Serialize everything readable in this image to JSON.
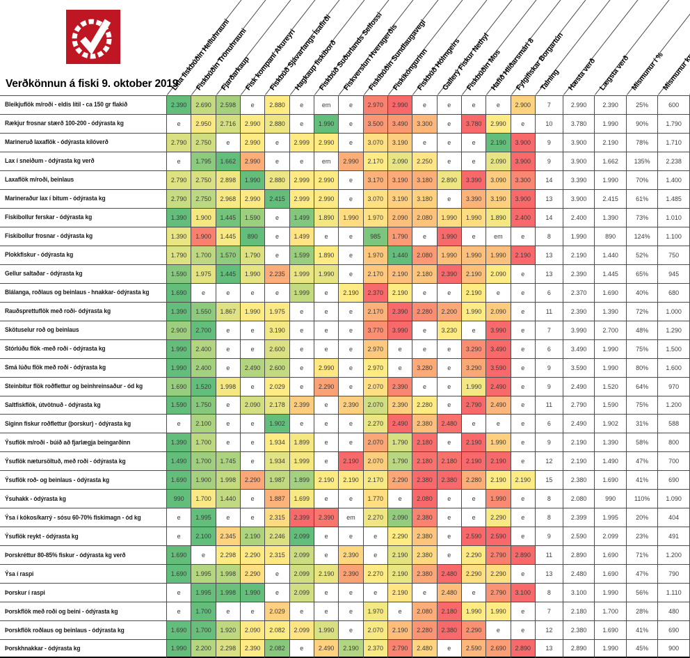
{
  "title": "Verðkönnun á fiski 9. oktober 2019",
  "logo": {
    "name": "chain-circle-checkmark-logo",
    "bg_color": "#be1622",
    "fg_color": "#ffffff"
  },
  "legend_colors": {
    "min_green": "#63BE7B",
    "mid_yellow": "#FFEB84",
    "max_red": "#F8696B",
    "empty": "#FFFFFF"
  },
  "chart_data": {
    "type": "table",
    "title": "Verðkönnun á fiski 9. október 2019",
    "color_scale": "per-row 3-color scale: min=green #63BE7B, median=yellow #FFEB84, max=red #F8696B, 'e'/'em'=white",
    "store_columns": [
      "Litla fiskbúðin Helluhrauni",
      "Fiskbúðin Trönuhrauni",
      "Fjarðarkaup",
      "Fisk kompaní Akureyri",
      "Fiskbúð Sjávarfangs Ísafirði",
      "Hagkaup fiskiborð",
      "Fiskbúð Suðurlands Selfossi",
      "Fiskverslun Hveragerðis",
      "Fiskibúðin Sundlaugavegi",
      "Fiskikóngurinn",
      "Fiskbúð Hólmgeirs",
      "Gallerý Fiskur Nethyl",
      "Fiskbúðin Mos",
      "Hafið Hlíðarsmári 8",
      "Fylgifiskar Borgartún"
    ],
    "summary_columns": [
      "Talning",
      "Hæsta verð",
      "Lægsta verð",
      "Mismunur í %",
      "Mismunur kr"
    ],
    "rows": [
      {
        "label": "Bleikjuflök m/roði - eldis lítil - ca 150 gr flakið",
        "prices": [
          "2.390",
          "2.690",
          "2.598",
          "e",
          "2.880",
          "e",
          "em",
          "e",
          "2.970",
          "2.990",
          "e",
          "e",
          "e",
          "e",
          "2.900"
        ],
        "summary": [
          "7",
          "2.990",
          "2.390",
          "25%",
          "600"
        ]
      },
      {
        "label": "Rækjur frosnar stærð 100-200 - ódýrasta kg",
        "prices": [
          "e",
          "2.950",
          "2.716",
          "2.990",
          "2.880",
          "e",
          "1.990",
          "e",
          "3.500",
          "3.490",
          "3.300",
          "e",
          "3.780",
          "2.990",
          "e"
        ],
        "summary": [
          "10",
          "3.780",
          "1.990",
          "90%",
          "1.790"
        ]
      },
      {
        "label": "Marineruð laxaflök - ódýrasta kílóverð",
        "prices": [
          "2.790",
          "2.750",
          "e",
          "2.990",
          "e",
          "2.999",
          "2.990",
          "e",
          "3.070",
          "3.190",
          "e",
          "e",
          "e",
          "2.190",
          "3.900"
        ],
        "summary": [
          "9",
          "3.900",
          "2.190",
          "78%",
          "1.710"
        ]
      },
      {
        "label": "Lax í sneiðum - ódýrasta kg verð",
        "prices": [
          "e",
          "1.795",
          "1.662",
          "2.990",
          "e",
          "e",
          "em",
          "2.990",
          "2.170",
          "2.090",
          "2.250",
          "e",
          "e",
          "2.090",
          "3.900"
        ],
        "summary": [
          "9",
          "3.900",
          "1.662",
          "135%",
          "2.238"
        ]
      },
      {
        "label": "Laxaflök m/roði, beinlaus",
        "prices": [
          "2.790",
          "2.750",
          "2.898",
          "1.990",
          "2.880",
          "2.999",
          "2.990",
          "e",
          "3.170",
          "3.190",
          "3.180",
          "2.890",
          "3.390",
          "3.090",
          "3.300"
        ],
        "summary": [
          "14",
          "3.390",
          "1.990",
          "70%",
          "1.400"
        ]
      },
      {
        "label": "Marineraður lax í bitum - ódýrasta kg",
        "prices": [
          "2.790",
          "2.750",
          "2.968",
          "2.990",
          "2.415",
          "2.999",
          "2.990",
          "e",
          "3.070",
          "3.190",
          "3.180",
          "e",
          "3.390",
          "3.190",
          "3.900"
        ],
        "summary": [
          "13",
          "3.900",
          "2.415",
          "61%",
          "1.485"
        ]
      },
      {
        "label": "Fiskibollur ferskar - ódýrasta kg",
        "prices": [
          "1.390",
          "1.900",
          "1.445",
          "1.590",
          "e",
          "1.499",
          "1.890",
          "1.990",
          "1.970",
          "2.090",
          "2.080",
          "1.990",
          "1.990",
          "1.890",
          "2.400"
        ],
        "summary": [
          "14",
          "2.400",
          "1.390",
          "73%",
          "1.010"
        ]
      },
      {
        "label": "Fiskibollur frosnar - ódýrasta kg",
        "prices": [
          "1.390",
          "1.900",
          "1.445",
          "890",
          "e",
          "1.499",
          "e",
          "e",
          "985",
          "1.790",
          "e",
          "1.990",
          "e",
          "em",
          "e"
        ],
        "summary": [
          "8",
          "1.990",
          "890",
          "124%",
          "1.100"
        ]
      },
      {
        "label": "Plokkfiskur - ódýrasta kg",
        "prices": [
          "1.790",
          "1.700",
          "1.570",
          "1.790",
          "e",
          "1.599",
          "1.890",
          "e",
          "1.970",
          "1.440",
          "2.080",
          "1.990",
          "1.990",
          "1.990",
          "2.190"
        ],
        "summary": [
          "13",
          "2.190",
          "1.440",
          "52%",
          "750"
        ]
      },
      {
        "label": "Gellur saltaðar - ódýrasta kg",
        "prices": [
          "1.590",
          "1.975",
          "1.445",
          "1.990",
          "2.235",
          "1.999",
          "1.990",
          "e",
          "2.170",
          "2.190",
          "2.180",
          "2.390",
          "2.190",
          "2.090",
          "e"
        ],
        "summary": [
          "13",
          "2.390",
          "1.445",
          "65%",
          "945"
        ]
      },
      {
        "label": "Blálanga, roðlaus og beinlaus - hnakkar- ódýrasta kg",
        "prices": [
          "1.690",
          "e",
          "e",
          "e",
          "e",
          "1.999",
          "e",
          "2.190",
          "2.370",
          "2.190",
          "e",
          "e",
          "2.190",
          "e",
          "e"
        ],
        "summary": [
          "6",
          "2.370",
          "1.690",
          "40%",
          "680"
        ]
      },
      {
        "label": "Rauðsprettuflök með roði- ódýrasta kg",
        "prices": [
          "1.390",
          "1.550",
          "1.867",
          "1.990",
          "1.975",
          "e",
          "e",
          "e",
          "2.170",
          "2.390",
          "2.280",
          "2.200",
          "1.990",
          "2.090",
          "e"
        ],
        "summary": [
          "11",
          "2.390",
          "1.390",
          "72%",
          "1.000"
        ]
      },
      {
        "label": "Skötuselur roð og beinlaus",
        "prices": [
          "2.900",
          "2.700",
          "e",
          "e",
          "3.190",
          "e",
          "e",
          "e",
          "3.770",
          "3.990",
          "e",
          "3.230",
          "e",
          "3.990",
          "e"
        ],
        "summary": [
          "7",
          "3.990",
          "2.700",
          "48%",
          "1.290"
        ]
      },
      {
        "label": "Stórlúðu flök -með roði - ódýrasta kg",
        "prices": [
          "1.990",
          "2.400",
          "e",
          "e",
          "2.600",
          "e",
          "e",
          "e",
          "2.970",
          "e",
          "e",
          "e",
          "3.290",
          "3.490",
          "e"
        ],
        "summary": [
          "6",
          "3.490",
          "1.990",
          "75%",
          "1.500"
        ]
      },
      {
        "label": "Smá lúðu flök með roði - ódýrasta kg",
        "prices": [
          "1.990",
          "2.400",
          "e",
          "2.490",
          "2.600",
          "e",
          "2.990",
          "e",
          "2.970",
          "e",
          "3.280",
          "e",
          "3.290",
          "3.590",
          "e"
        ],
        "summary": [
          "9",
          "3.590",
          "1.990",
          "80%",
          "1.600"
        ]
      },
      {
        "label": "Steinbítur flök roðflettur og beinhreinsaður - ód kg",
        "prices": [
          "1.690",
          "1.520",
          "1.998",
          "e",
          "2.029",
          "e",
          "2.290",
          "e",
          "2.070",
          "2.390",
          "e",
          "e",
          "1.990",
          "2.490",
          "e"
        ],
        "summary": [
          "9",
          "2.490",
          "1.520",
          "64%",
          "970"
        ]
      },
      {
        "label": "Saltfiskflök, útvötnuð - ódýrasta kg",
        "prices": [
          "1.590",
          "1.750",
          "e",
          "2.090",
          "2.178",
          "2.399",
          "e",
          "2.390",
          "2.070",
          "2.390",
          "2.280",
          "e",
          "2.790",
          "2.490",
          "e"
        ],
        "summary": [
          "11",
          "2.790",
          "1.590",
          "75%",
          "1.200"
        ]
      },
      {
        "label": "Siginn fiskur roðflettur (þorskur) - ódýrasta kg",
        "prices": [
          "e",
          "2.100",
          "e",
          "e",
          "1.902",
          "e",
          "e",
          "e",
          "2.270",
          "2.490",
          "2.380",
          "2.480",
          "e",
          "e",
          "e"
        ],
        "summary": [
          "6",
          "2.490",
          "1.902",
          "31%",
          "588"
        ]
      },
      {
        "label": "Ýsuflök m/roði - búið að fjarlægja beingarðinn",
        "prices": [
          "1.390",
          "1.700",
          "e",
          "e",
          "1.934",
          "1.899",
          "e",
          "e",
          "2.070",
          "1.790",
          "2.180",
          "e",
          "2.190",
          "1.990",
          "e"
        ],
        "summary": [
          "9",
          "2.190",
          "1.390",
          "58%",
          "800"
        ]
      },
      {
        "label": "Ýsuflök nætursöltuð, með roði - ódýrasta kg",
        "prices": [
          "1.490",
          "1.700",
          "1.745",
          "e",
          "1.934",
          "1.999",
          "e",
          "2.190",
          "2.070",
          "1.790",
          "2.180",
          "2.180",
          "2.190",
          "2.190",
          "e"
        ],
        "summary": [
          "12",
          "2.190",
          "1.490",
          "47%",
          "700"
        ]
      },
      {
        "label": "Ýsuflök roð- og beinlaus - ódýrasta kg",
        "prices": [
          "1.690",
          "1.900",
          "1.998",
          "2.290",
          "1.987",
          "1.899",
          "2.190",
          "2.190",
          "2.170",
          "2.290",
          "2.380",
          "2.380",
          "2.280",
          "2.190",
          "2.190"
        ],
        "summary": [
          "15",
          "2.380",
          "1.690",
          "41%",
          "690"
        ]
      },
      {
        "label": "Ýsuhakk - ódýrasta kg",
        "prices": [
          "990",
          "1.700",
          "1.440",
          "e",
          "1.887",
          "1.699",
          "e",
          "e",
          "1.770",
          "e",
          "2.080",
          "e",
          "e",
          "1.990",
          "e"
        ],
        "summary": [
          "8",
          "2.080",
          "990",
          "110%",
          "1.090"
        ]
      },
      {
        "label": "Ýsa í kókos/karrý - sósu 60-70% fiskimagn - ód kg",
        "prices": [
          "e",
          "1.995",
          "e",
          "e",
          "2.315",
          "2.399",
          "2.390",
          "em",
          "2.270",
          "2.090",
          "2.380",
          "e",
          "e",
          "2.290",
          "e"
        ],
        "summary": [
          "8",
          "2.399",
          "1.995",
          "20%",
          "404"
        ]
      },
      {
        "label": "Ýsuflök reykt - ódýrasta kg",
        "prices": [
          "e",
          "2.100",
          "2.345",
          "2.190",
          "2.246",
          "2.099",
          "e",
          "e",
          "e",
          "2.290",
          "2.380",
          "e",
          "2.590",
          "2.590",
          "e"
        ],
        "summary": [
          "9",
          "2.590",
          "2.099",
          "23%",
          "491"
        ]
      },
      {
        "label": "Þorskréttur 80-85% fiskur - ódýrasta kg verð",
        "prices": [
          "1.690",
          "e",
          "2.298",
          "2.290",
          "2.315",
          "2.099",
          "e",
          "2.390",
          "e",
          "2.190",
          "2.380",
          "e",
          "2.290",
          "2.790",
          "2.890"
        ],
        "summary": [
          "11",
          "2.890",
          "1.690",
          "71%",
          "1.200"
        ]
      },
      {
        "label": "Ýsa í raspi",
        "prices": [
          "1.690",
          "1.995",
          "1.998",
          "2.290",
          "e",
          "2.099",
          "2.190",
          "2.390",
          "2.270",
          "2.190",
          "2.380",
          "2.480",
          "2.290",
          "2.290",
          "e"
        ],
        "summary": [
          "13",
          "2.480",
          "1.690",
          "47%",
          "790"
        ]
      },
      {
        "label": "Þorskur í raspi",
        "prices": [
          "e",
          "1.995",
          "1.998",
          "1.990",
          "e",
          "2.099",
          "e",
          "e",
          "e",
          "2.190",
          "e",
          "2.480",
          "e",
          "2.790",
          "3.100"
        ],
        "summary": [
          "8",
          "3.100",
          "1.990",
          "56%",
          "1.110"
        ]
      },
      {
        "label": "Þorskflök með roði og beini - ódýrasta kg",
        "prices": [
          "e",
          "1.700",
          "e",
          "e",
          "2.029",
          "e",
          "e",
          "e",
          "1.970",
          "e",
          "2.080",
          "2.180",
          "1.990",
          "1.990",
          "e"
        ],
        "summary": [
          "7",
          "2.180",
          "1.700",
          "28%",
          "480"
        ]
      },
      {
        "label": "Þorskflök roðlaus og beinlaus - ódýrasta kg",
        "prices": [
          "1.690",
          "1.700",
          "1.920",
          "2.090",
          "2.082",
          "2.099",
          "1.990",
          "e",
          "2.070",
          "2.190",
          "2.280",
          "2.380",
          "2.290",
          "e",
          "e"
        ],
        "summary": [
          "12",
          "2.380",
          "1.690",
          "41%",
          "690"
        ]
      },
      {
        "label": "Þorskhnakkar - ódýrasta kg",
        "prices": [
          "1.990",
          "2.200",
          "2.298",
          "2.390",
          "2.082",
          "e",
          "2.490",
          "2.190",
          "2.370",
          "2.790",
          "2.480",
          "e",
          "2.590",
          "2.690",
          "2.890"
        ],
        "summary": [
          "13",
          "2.890",
          "1.990",
          "45%",
          "900"
        ]
      }
    ]
  }
}
